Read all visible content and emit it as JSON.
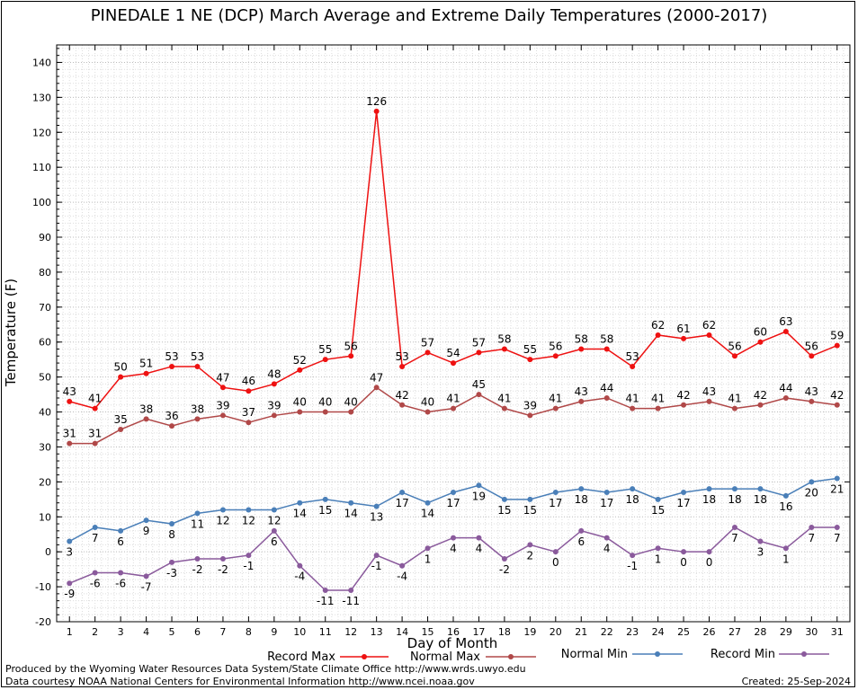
{
  "chart_data": {
    "type": "line",
    "title": "PINEDALE 1 NE (DCP) March Average and Extreme Daily Temperatures (2000-2017)",
    "xlabel": "Day of Month",
    "ylabel": "Temperature (F)",
    "ylim": [
      -20,
      145
    ],
    "yticks": [
      -20,
      -10,
      0,
      10,
      20,
      30,
      40,
      50,
      60,
      70,
      80,
      90,
      100,
      110,
      120,
      130,
      140
    ],
    "grid": true,
    "legend_position": "bottom",
    "x": [
      1,
      2,
      3,
      4,
      5,
      6,
      7,
      8,
      9,
      10,
      11,
      12,
      13,
      14,
      15,
      16,
      17,
      18,
      19,
      20,
      21,
      22,
      23,
      24,
      25,
      26,
      27,
      28,
      29,
      30,
      31
    ],
    "series": [
      {
        "name": "Record Max",
        "color": "#ee1111",
        "label_pos": "above",
        "values": [
          43,
          41,
          50,
          51,
          53,
          53,
          47,
          46,
          48,
          52,
          55,
          56,
          126,
          53,
          57,
          54,
          57,
          58,
          55,
          56,
          58,
          58,
          53,
          62,
          61,
          62,
          56,
          60,
          63,
          56,
          59
        ]
      },
      {
        "name": "Normal Max",
        "color": "#b04848",
        "label_pos": "above",
        "values": [
          31,
          31,
          35,
          38,
          36,
          38,
          39,
          37,
          39,
          40,
          40,
          40,
          47,
          42,
          40,
          41,
          45,
          41,
          39,
          41,
          43,
          44,
          41,
          41,
          42,
          43,
          41,
          42,
          44,
          43,
          42
        ]
      },
      {
        "name": "Normal Min",
        "color": "#4a7fb8",
        "label_pos": "below",
        "values": [
          3,
          7,
          6,
          9,
          8,
          11,
          12,
          12,
          12,
          14,
          15,
          14,
          13,
          17,
          14,
          17,
          19,
          15,
          15,
          17,
          18,
          17,
          18,
          15,
          17,
          18,
          18,
          18,
          16,
          20,
          21
        ]
      },
      {
        "name": "Record Min",
        "color": "#8a5a9c",
        "label_pos": "below",
        "values": [
          -9,
          -6,
          -6,
          -7,
          -3,
          -2,
          -2,
          -1,
          6,
          -4,
          -11,
          -11,
          -1,
          -4,
          1,
          4,
          4,
          -2,
          2,
          0,
          6,
          4,
          -1,
          1,
          0,
          0,
          7,
          3,
          1,
          7,
          7
        ]
      }
    ]
  },
  "footer": {
    "producer": "Produced by the Wyoming Water Resources Data System/State Climate Office http://www.wrds.uwyo.edu",
    "courtesy": "Data courtesy NOAA National Centers for Environmental Information http://www.ncei.noaa.gov",
    "created": "Created:  25-Sep-2024"
  }
}
